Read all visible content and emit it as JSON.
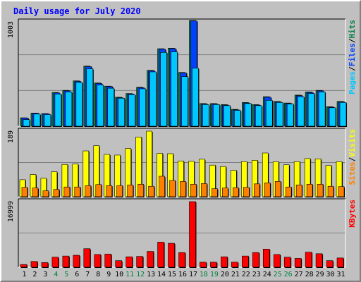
{
  "title": "Daily usage for July 2020",
  "colors": {
    "title": "#0000ff",
    "hits": "#008040",
    "files": "#0040ff",
    "pages": "#00c8ff",
    "visits": "#ffff00",
    "sites": "#ff8000",
    "kbytes": "#ff0000",
    "weekend": "#008040",
    "weekday": "#000000"
  },
  "chart_data": [
    {
      "type": "bar",
      "panel": "hits-files-pages",
      "max_label": "1003",
      "ylim": [
        0,
        1003
      ],
      "right_labels": [
        "Pages",
        "/",
        "Files",
        "/",
        "Hits"
      ],
      "categories": [
        "1",
        "2",
        "3",
        "4",
        "5",
        "6",
        "7",
        "8",
        "9",
        "10",
        "11",
        "12",
        "13",
        "14",
        "15",
        "16",
        "17",
        "18",
        "19",
        "20",
        "21",
        "22",
        "23",
        "24",
        "25",
        "26",
        "27",
        "28",
        "29",
        "30",
        "31"
      ],
      "weekend_days": [
        "4",
        "5",
        "11",
        "12",
        "18",
        "19",
        "25",
        "26"
      ],
      "series": [
        {
          "name": "Hits",
          "values": [
            80,
            125,
            120,
            320,
            340,
            430,
            570,
            410,
            380,
            275,
            310,
            370,
            530,
            735,
            740,
            510,
            1003,
            215,
            215,
            205,
            160,
            225,
            205,
            280,
            235,
            220,
            295,
            325,
            340,
            185,
            235
          ]
        },
        {
          "name": "Files",
          "values": [
            78,
            123,
            118,
            315,
            335,
            425,
            565,
            405,
            375,
            270,
            305,
            365,
            525,
            730,
            735,
            505,
            998,
            210,
            210,
            200,
            155,
            220,
            200,
            275,
            230,
            215,
            290,
            320,
            335,
            180,
            230
          ]
        },
        {
          "name": "Pages",
          "values": [
            62,
            115,
            110,
            305,
            325,
            415,
            545,
            390,
            360,
            265,
            300,
            355,
            515,
            700,
            705,
            470,
            550,
            205,
            205,
            195,
            150,
            215,
            195,
            245,
            225,
            210,
            280,
            310,
            325,
            175,
            225
          ]
        }
      ]
    },
    {
      "type": "bar",
      "panel": "sites-visits",
      "max_label": "189",
      "ylim": [
        0,
        189
      ],
      "right_labels": [
        "Sites",
        "/",
        "Visits"
      ],
      "categories": [
        "1",
        "2",
        "3",
        "4",
        "5",
        "6",
        "7",
        "8",
        "9",
        "10",
        "11",
        "12",
        "13",
        "14",
        "15",
        "16",
        "17",
        "18",
        "19",
        "20",
        "21",
        "22",
        "23",
        "24",
        "25",
        "26",
        "27",
        "28",
        "29",
        "30",
        "31"
      ],
      "series": [
        {
          "name": "Visits",
          "values": [
            49,
            64,
            53,
            72,
            93,
            94,
            132,
            147,
            122,
            120,
            139,
            172,
            189,
            125,
            124,
            103,
            102,
            108,
            91,
            87,
            76,
            101,
            105,
            126,
            101,
            92,
            101,
            110,
            109,
            90,
            101
          ]
        },
        {
          "name": "Sites",
          "values": [
            27,
            25,
            17,
            21,
            28,
            28,
            32,
            35,
            32,
            32,
            34,
            36,
            30,
            59,
            47,
            44,
            36,
            38,
            23,
            25,
            26,
            27,
            37,
            40,
            44,
            28,
            34,
            36,
            36,
            30,
            29
          ]
        }
      ]
    },
    {
      "type": "bar",
      "panel": "kbytes",
      "max_label": "16999",
      "ylim": [
        0,
        16999
      ],
      "right_labels": [
        "KBytes"
      ],
      "categories": [
        "1",
        "2",
        "3",
        "4",
        "5",
        "6",
        "7",
        "8",
        "9",
        "10",
        "11",
        "12",
        "13",
        "14",
        "15",
        "16",
        "17",
        "18",
        "19",
        "20",
        "21",
        "22",
        "23",
        "24",
        "25",
        "26",
        "27",
        "28",
        "29",
        "30",
        "31"
      ],
      "series": [
        {
          "name": "KBytes",
          "values": [
            700,
            1500,
            1200,
            2600,
            2900,
            3100,
            4800,
            3300,
            3400,
            1700,
            2700,
            2800,
            4100,
            6500,
            6200,
            3800,
            16999,
            1300,
            1300,
            2700,
            1300,
            2900,
            3800,
            4700,
            3300,
            2600,
            2300,
            3900,
            3500,
            1700,
            2400
          ]
        }
      ]
    }
  ]
}
